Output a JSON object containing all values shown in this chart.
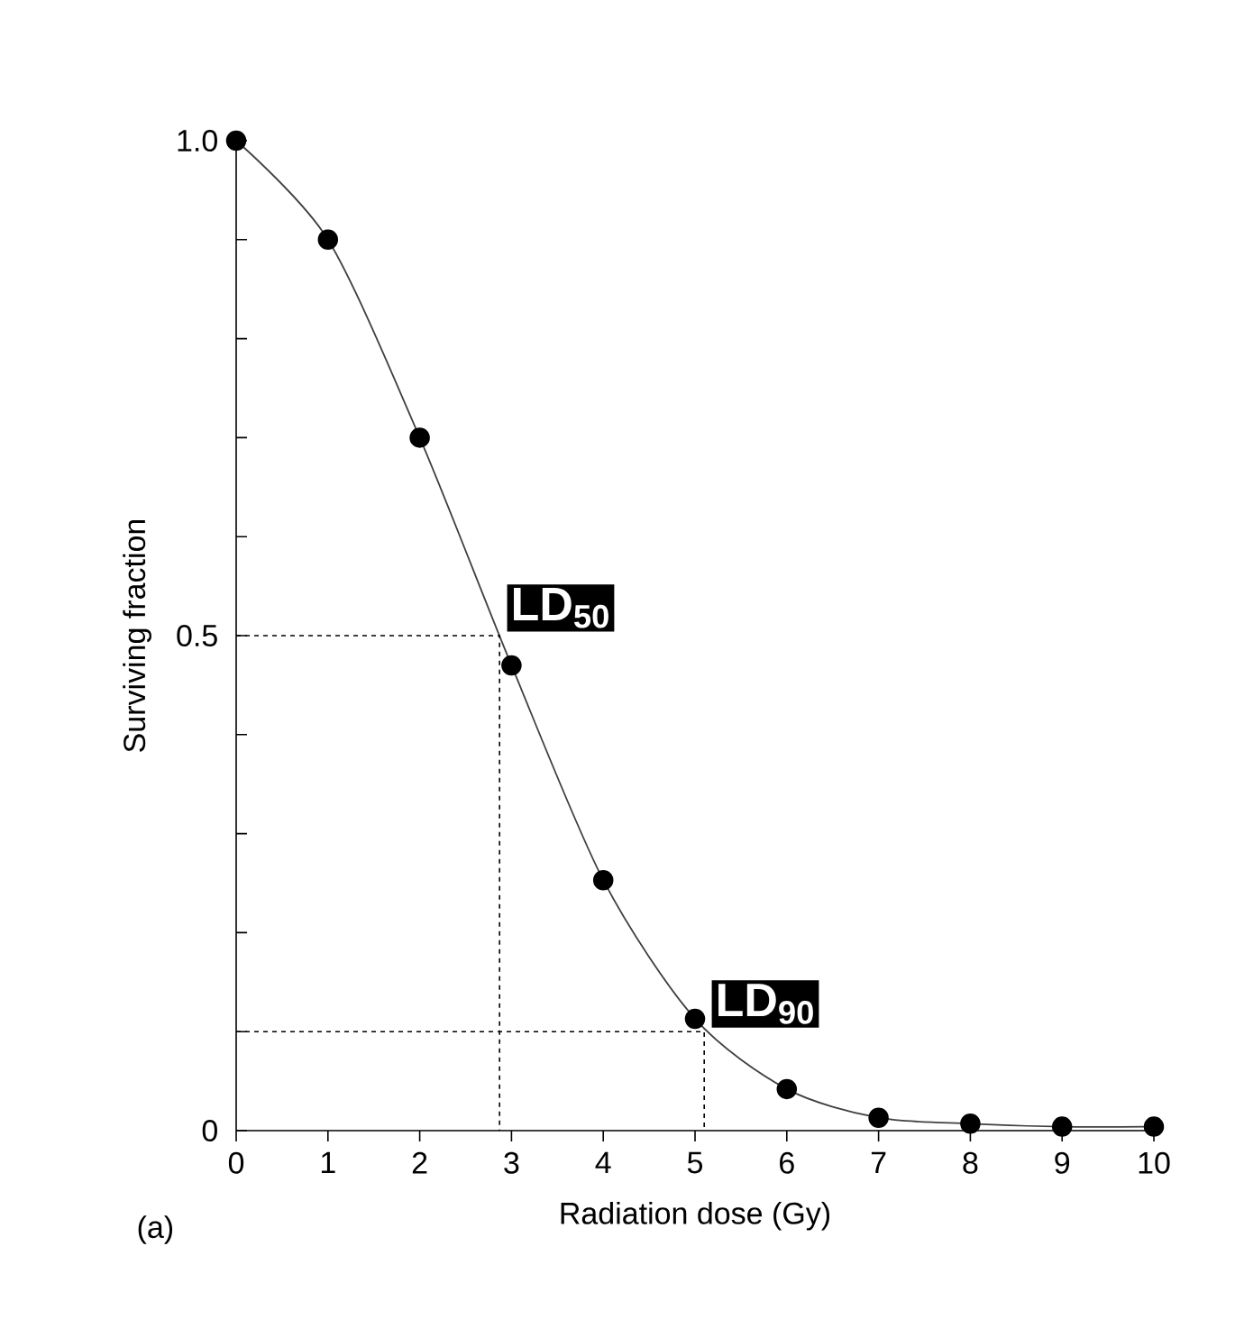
{
  "chart_data": {
    "type": "line",
    "xlabel": "Radiation dose (Gy)",
    "ylabel": "Surviving fraction",
    "x": [
      0,
      1,
      2,
      3,
      4,
      5,
      6,
      7,
      8,
      9,
      10
    ],
    "series": [
      {
        "color": "#000000",
        "values": [
          1.0,
          0.9,
          0.7,
          0.47,
          0.253,
          0.113,
          0.042,
          0.013,
          0.007,
          0.004,
          0.004
        ]
      },
      {
        "color": "#000000",
        "x": [
          0,
          2.87,
          2.87
        ],
        "values": [
          0.5,
          0.5,
          0
        ],
        "marker": "none",
        "line_style": "dotted"
      },
      {
        "color": "#000000",
        "x": [
          0,
          5.1,
          5.1
        ],
        "values": [
          0.1,
          0.1,
          0
        ],
        "marker": "none",
        "line_style": "dotted"
      }
    ],
    "marker": "circle",
    "line_style": "solid",
    "xlim": [
      0,
      10
    ],
    "ylim": [
      0,
      1
    ],
    "xticks": [
      0,
      1,
      2,
      3,
      4,
      5,
      6,
      7,
      8,
      9,
      10
    ],
    "yticks": [
      0,
      {
        "value": 0.1,
        "label": null
      },
      {
        "value": 0.2,
        "label": null
      },
      {
        "value": 0.3,
        "label": null
      },
      {
        "value": 0.4,
        "label": null
      },
      0.5,
      {
        "value": 0.6,
        "label": null
      },
      {
        "value": 0.7,
        "label": null
      },
      {
        "value": 0.8,
        "label": null
      },
      {
        "value": 0.9,
        "label": null
      },
      {
        "value": 1,
        "label": "1.0"
      }
    ],
    "annotations": [
      {
        "text": "LD$_{50}$",
        "x": 2.87,
        "y": 0.5
      },
      {
        "text": "LD$_{90}$",
        "x": 5.1,
        "y": 0.1
      },
      "(a)"
    ]
  }
}
